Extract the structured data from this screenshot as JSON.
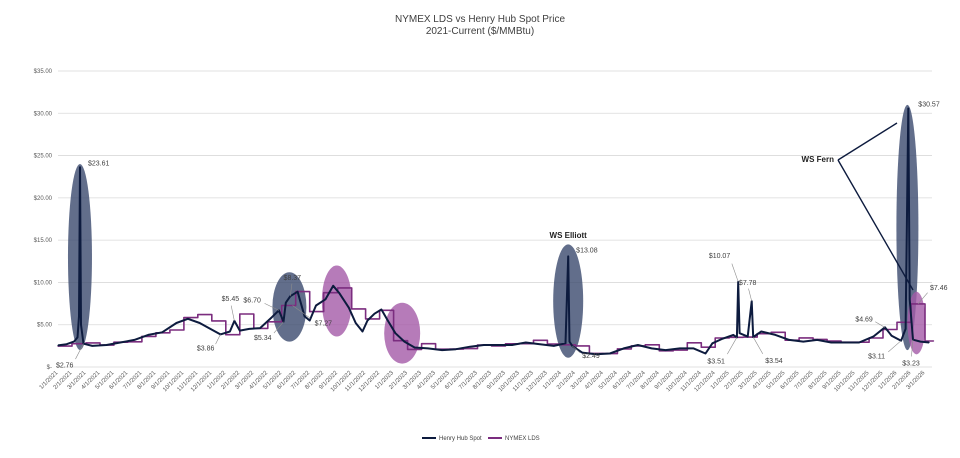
{
  "chart_data": {
    "type": "line",
    "title": "NYMEX LDS vs Henry Hub Spot  Price",
    "subtitle": "2021-Current ($/MMBtu)",
    "xlabel": "",
    "ylabel": "",
    "ylim": [
      0,
      35
    ],
    "y_tick_labels": [
      "$-",
      "$5.00",
      "$10.00",
      "$15.00",
      "$20.00",
      "$25.00",
      "$30.00",
      "$35.00"
    ],
    "x_tick_labels": [
      "1/1/2021",
      "2/1/2021",
      "3/1/2021",
      "4/1/2021",
      "5/1/2021",
      "6/1/2021",
      "7/1/2021",
      "8/1/2021",
      "9/1/2021",
      "10/1/2021",
      "11/1/2021",
      "12/1/2021",
      "1/1/2022",
      "2/1/2022",
      "3/1/2022",
      "4/1/2022",
      "5/1/2022",
      "6/1/2022",
      "7/1/2022",
      "8/1/2022",
      "9/1/2022",
      "10/1/2022",
      "11/1/2022",
      "12/1/2022",
      "1/1/2023",
      "2/1/2023",
      "3/1/2023",
      "4/1/2023",
      "5/1/2023",
      "6/1/2023",
      "7/1/2023",
      "8/1/2023",
      "9/1/2023",
      "10/1/2023",
      "11/1/2023",
      "12/1/2023",
      "1/1/2024",
      "2/1/2024",
      "3/1/2024",
      "4/1/2024",
      "5/1/2024",
      "6/1/2024",
      "7/1/2024",
      "8/1/2024",
      "9/1/2024",
      "10/1/2024",
      "11/1/2024",
      "12/1/2024",
      "1/1/2025",
      "2/1/2025",
      "3/1/2025",
      "4/1/2025",
      "5/1/2025",
      "6/1/2025",
      "7/1/2025",
      "8/1/2025",
      "9/1/2025",
      "10/1/2025",
      "11/1/2025",
      "12/1/2025",
      "1/1/2026",
      "2/1/2026",
      "3/1/2026"
    ],
    "grid": true,
    "legend_position": "bottom",
    "series": [
      {
        "name": "Henry Hub Spot",
        "color": "#0d1b3e",
        "style": "line",
        "points": [
          [
            "2021-01-01",
            2.55
          ],
          [
            "2021-01-20",
            2.7
          ],
          [
            "2021-02-05",
            3.0
          ],
          [
            "2021-02-12",
            3.5
          ],
          [
            "2021-02-15",
            6.0
          ],
          [
            "2021-02-17",
            23.61
          ],
          [
            "2021-02-19",
            5.0
          ],
          [
            "2021-02-24",
            2.76
          ],
          [
            "2021-03-15",
            2.5
          ],
          [
            "2021-04-15",
            2.6
          ],
          [
            "2021-05-15",
            2.9
          ],
          [
            "2021-06-15",
            3.2
          ],
          [
            "2021-07-15",
            3.8
          ],
          [
            "2021-08-15",
            4.1
          ],
          [
            "2021-09-15",
            5.2
          ],
          [
            "2021-10-10",
            5.7
          ],
          [
            "2021-11-05",
            5.2
          ],
          [
            "2021-11-25",
            4.6
          ],
          [
            "2021-12-20",
            3.86
          ],
          [
            "2022-01-10",
            4.2
          ],
          [
            "2022-01-20",
            5.45
          ],
          [
            "2022-02-01",
            4.3
          ],
          [
            "2022-02-20",
            4.5
          ],
          [
            "2022-03-15",
            4.6
          ],
          [
            "2022-04-10",
            5.9
          ],
          [
            "2022-04-25",
            6.7
          ],
          [
            "2022-05-05",
            5.34
          ],
          [
            "2022-05-10",
            7.6
          ],
          [
            "2022-05-20",
            8.37
          ],
          [
            "2022-06-05",
            8.9
          ],
          [
            "2022-06-20",
            6.0
          ],
          [
            "2022-07-01",
            5.5
          ],
          [
            "2022-07-15",
            7.27
          ],
          [
            "2022-08-05",
            8.0
          ],
          [
            "2022-08-22",
            9.6
          ],
          [
            "2022-09-05",
            8.7
          ],
          [
            "2022-09-25",
            7.0
          ],
          [
            "2022-10-10",
            5.2
          ],
          [
            "2022-10-25",
            4.2
          ],
          [
            "2022-11-05",
            5.5
          ],
          [
            "2022-11-20",
            6.3
          ],
          [
            "2022-12-05",
            6.8
          ],
          [
            "2022-12-20",
            5.4
          ],
          [
            "2023-01-05",
            4.0
          ],
          [
            "2023-01-25",
            3.0
          ],
          [
            "2023-02-15",
            2.3
          ],
          [
            "2023-03-15",
            2.2
          ],
          [
            "2023-04-15",
            2.0
          ],
          [
            "2023-05-15",
            2.1
          ],
          [
            "2023-06-15",
            2.4
          ],
          [
            "2023-07-15",
            2.6
          ],
          [
            "2023-08-15",
            2.6
          ],
          [
            "2023-09-15",
            2.6
          ],
          [
            "2023-10-15",
            2.9
          ],
          [
            "2023-11-15",
            2.7
          ],
          [
            "2023-12-15",
            2.5
          ],
          [
            "2024-01-10",
            2.8
          ],
          [
            "2024-01-16",
            13.08
          ],
          [
            "2024-01-19",
            3.0
          ],
          [
            "2024-01-25",
            2.49
          ],
          [
            "2024-02-15",
            1.7
          ],
          [
            "2024-03-15",
            1.5
          ],
          [
            "2024-04-15",
            1.6
          ],
          [
            "2024-05-15",
            2.2
          ],
          [
            "2024-06-15",
            2.6
          ],
          [
            "2024-07-15",
            2.2
          ],
          [
            "2024-08-15",
            2.0
          ],
          [
            "2024-09-15",
            2.2
          ],
          [
            "2024-10-15",
            2.2
          ],
          [
            "2024-11-10",
            1.6
          ],
          [
            "2024-11-25",
            2.8
          ],
          [
            "2024-12-15",
            3.3
          ],
          [
            "2025-01-10",
            3.8
          ],
          [
            "2025-01-18",
            3.51
          ],
          [
            "2025-01-21",
            10.07
          ],
          [
            "2025-01-24",
            4.0
          ],
          [
            "2025-02-10",
            3.6
          ],
          [
            "2025-02-18",
            7.78
          ],
          [
            "2025-02-21",
            3.54
          ],
          [
            "2025-03-10",
            4.2
          ],
          [
            "2025-04-10",
            3.8
          ],
          [
            "2025-05-10",
            3.2
          ],
          [
            "2025-06-10",
            3.0
          ],
          [
            "2025-07-10",
            3.2
          ],
          [
            "2025-08-10",
            2.9
          ],
          [
            "2025-09-10",
            2.9
          ],
          [
            "2025-10-10",
            2.9
          ],
          [
            "2025-11-10",
            3.6
          ],
          [
            "2025-12-05",
            4.69
          ],
          [
            "2025-12-20",
            3.7
          ],
          [
            "2026-01-10",
            3.11
          ],
          [
            "2026-01-20",
            4.5
          ],
          [
            "2026-01-26",
            30.57
          ],
          [
            "2026-01-29",
            8.0
          ],
          [
            "2026-02-05",
            3.23
          ],
          [
            "2026-02-20",
            3.0
          ],
          [
            "2026-03-10",
            2.9
          ]
        ]
      },
      {
        "name": "NYMEX LDS",
        "color": "#7b2d7f",
        "style": "step",
        "points": [
          [
            "2021-01-01",
            2.47
          ],
          [
            "2021-02-01",
            2.76
          ],
          [
            "2021-03-01",
            2.85
          ],
          [
            "2021-04-01",
            2.59
          ],
          [
            "2021-05-01",
            2.93
          ],
          [
            "2021-06-01",
            2.98
          ],
          [
            "2021-07-01",
            3.62
          ],
          [
            "2021-08-01",
            4.04
          ],
          [
            "2021-09-01",
            4.37
          ],
          [
            "2021-10-01",
            5.84
          ],
          [
            "2021-11-01",
            6.2
          ],
          [
            "2021-12-01",
            5.45
          ],
          [
            "2022-01-01",
            3.82
          ],
          [
            "2022-02-01",
            6.27
          ],
          [
            "2022-03-01",
            4.57
          ],
          [
            "2022-04-01",
            5.34
          ],
          [
            "2022-05-01",
            7.27
          ],
          [
            "2022-06-01",
            8.91
          ],
          [
            "2022-07-01",
            6.55
          ],
          [
            "2022-08-01",
            8.78
          ],
          [
            "2022-09-01",
            9.35
          ],
          [
            "2022-10-01",
            6.87
          ],
          [
            "2022-11-01",
            5.69
          ],
          [
            "2022-12-01",
            6.71
          ],
          [
            "2023-01-01",
            3.11
          ],
          [
            "2023-02-01",
            2.08
          ],
          [
            "2023-03-01",
            2.76
          ],
          [
            "2023-04-01",
            2.1
          ],
          [
            "2023-05-01",
            2.12
          ],
          [
            "2023-06-01",
            2.18
          ],
          [
            "2023-07-01",
            2.6
          ],
          [
            "2023-08-01",
            2.5
          ],
          [
            "2023-09-01",
            2.74
          ],
          [
            "2023-10-01",
            2.76
          ],
          [
            "2023-11-01",
            3.16
          ],
          [
            "2023-12-01",
            2.71
          ],
          [
            "2024-01-01",
            2.62
          ],
          [
            "2024-02-01",
            2.49
          ],
          [
            "2024-03-01",
            1.61
          ],
          [
            "2024-04-01",
            1.58
          ],
          [
            "2024-05-01",
            2.14
          ],
          [
            "2024-06-01",
            2.5
          ],
          [
            "2024-07-01",
            2.63
          ],
          [
            "2024-08-01",
            1.91
          ],
          [
            "2024-09-01",
            2.0
          ],
          [
            "2024-10-01",
            2.86
          ],
          [
            "2024-11-01",
            2.34
          ],
          [
            "2024-12-01",
            3.43
          ],
          [
            "2025-01-01",
            3.51
          ],
          [
            "2025-02-01",
            3.54
          ],
          [
            "2025-03-01",
            3.94
          ],
          [
            "2025-04-01",
            4.1
          ],
          [
            "2025-05-01",
            3.17
          ],
          [
            "2025-06-01",
            3.44
          ],
          [
            "2025-07-01",
            3.26
          ],
          [
            "2025-08-01",
            3.08
          ],
          [
            "2025-09-01",
            2.93
          ],
          [
            "2025-10-01",
            2.93
          ],
          [
            "2025-11-01",
            3.43
          ],
          [
            "2025-12-01",
            4.43
          ],
          [
            "2026-01-01",
            5.29
          ],
          [
            "2026-02-01",
            7.46
          ],
          [
            "2026-03-01",
            3.08
          ],
          [
            "2026-03-20",
            3.08
          ]
        ]
      }
    ],
    "data_labels": [
      {
        "date": "2021-02-17",
        "value": 23.61,
        "text": "$23.61"
      },
      {
        "date": "2021-02-24",
        "value": 2.76,
        "text": "$2.76"
      },
      {
        "date": "2022-01-20",
        "value": 5.45,
        "text": "$5.45"
      },
      {
        "date": "2021-12-20",
        "value": 3.86,
        "text": "$3.86"
      },
      {
        "date": "2022-04-25",
        "value": 6.7,
        "text": "$6.70"
      },
      {
        "date": "2022-05-20",
        "value": 8.37,
        "text": "$8.37"
      },
      {
        "date": "2022-05-05",
        "value": 5.34,
        "text": "$5.34"
      },
      {
        "date": "2022-05-25",
        "value": 7.27,
        "text": "$7.27"
      },
      {
        "date": "2024-01-16",
        "value": 13.08,
        "text": "$13.08"
      },
      {
        "date": "2024-01-25",
        "value": 2.49,
        "text": "$2.49"
      },
      {
        "date": "2025-01-21",
        "value": 10.07,
        "text": "$10.07"
      },
      {
        "date": "2025-01-18",
        "value": 3.51,
        "text": "$3.51"
      },
      {
        "date": "2025-02-18",
        "value": 7.78,
        "text": "$7.78"
      },
      {
        "date": "2025-02-21",
        "value": 3.54,
        "text": "$3.54"
      },
      {
        "date": "2025-12-05",
        "value": 4.69,
        "text": "$4.69"
      },
      {
        "date": "2026-01-10",
        "value": 3.11,
        "text": "$3.11"
      },
      {
        "date": "2026-01-26",
        "value": 30.57,
        "text": "$30.57"
      },
      {
        "date": "2026-02-05",
        "value": 3.23,
        "text": "$3.23"
      },
      {
        "date": "2026-02-15",
        "value": 7.46,
        "text": "$7.46"
      }
    ],
    "annotations": [
      {
        "text": "WS Elliott",
        "date": "2024-01-16"
      },
      {
        "text": "WS Fern",
        "date": "2026-01-26"
      }
    ],
    "highlight_colors": {
      "spot_spike": "#3b4a6e",
      "lds_spike": "#a45aa8"
    }
  }
}
